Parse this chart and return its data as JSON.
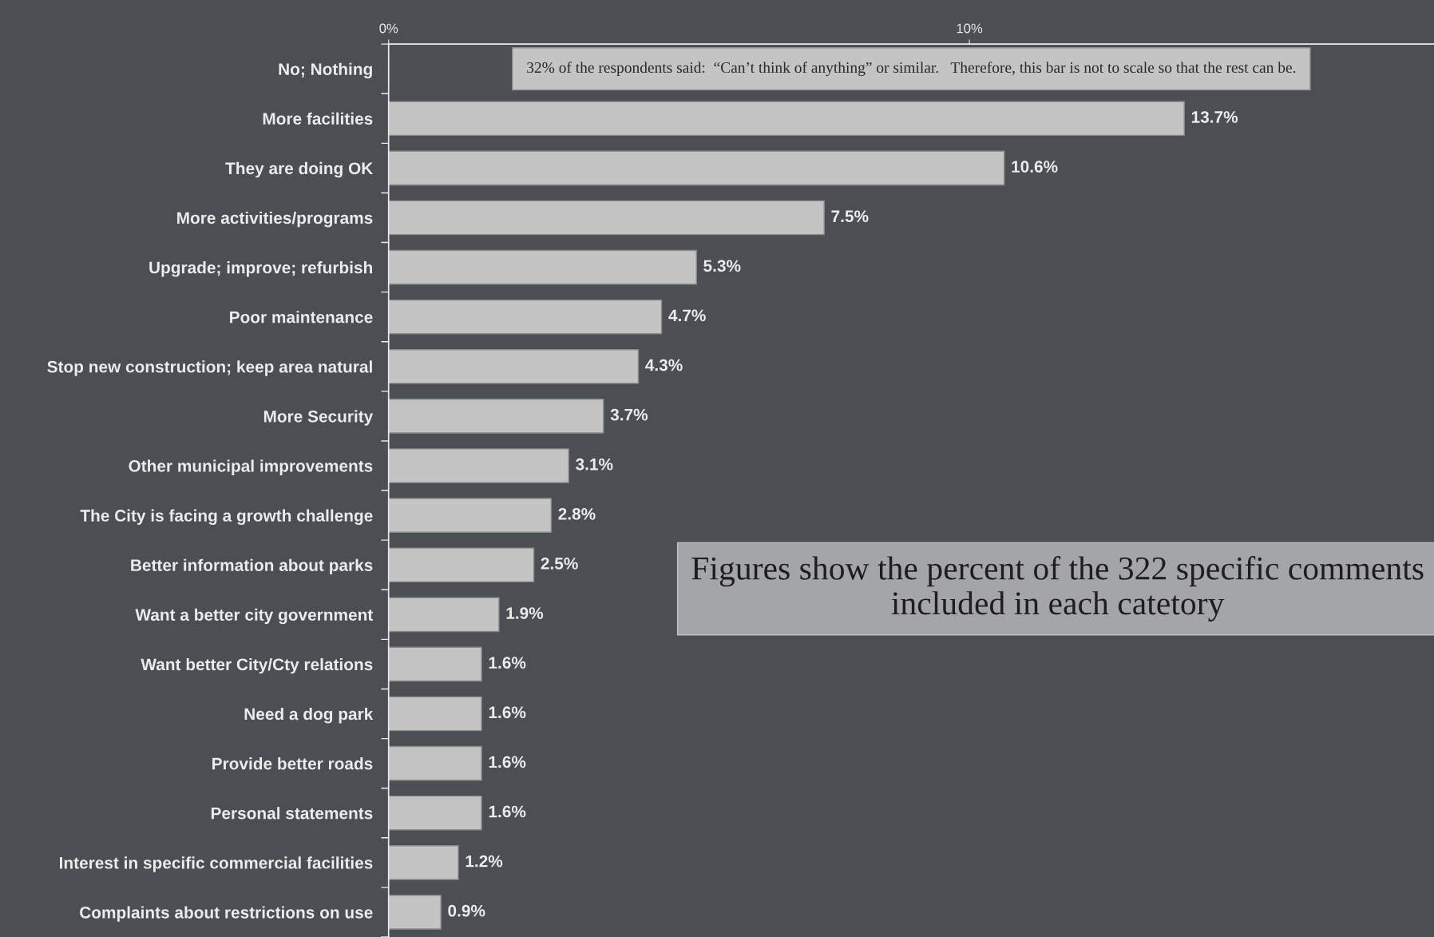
{
  "chart_data": {
    "type": "bar",
    "orientation": "horizontal",
    "categories": [
      "No; Nothing",
      "More facilities",
      "They are doing OK",
      "More activities/programs",
      "Upgrade; improve; refurbish",
      "Poor maintenance",
      "Stop new construction; keep area natural",
      "More Security",
      "Other municipal improvements",
      "The City is facing a growth challenge",
      "Better information about parks",
      "Want a better city government",
      "Want better City/Cty relations",
      "Need a dog park",
      "Provide better roads",
      "Personal statements",
      "Interest in specific commercial facilities",
      "Complaints about restrictions on use"
    ],
    "values": [
      null,
      13.7,
      10.6,
      7.5,
      5.3,
      4.7,
      4.3,
      3.7,
      3.1,
      2.8,
      2.5,
      1.9,
      1.6,
      1.6,
      1.6,
      1.6,
      1.2,
      0.9
    ],
    "value_labels": [
      null,
      "13.7%",
      "10.6%",
      "7.5%",
      "5.3%",
      "4.7%",
      "4.3%",
      "3.7%",
      "3.1%",
      "2.8%",
      "2.5%",
      "1.9%",
      "1.6%",
      "1.6%",
      "1.6%",
      "1.6%",
      "1.2%",
      "0.9%"
    ],
    "color": "#c4c4c4",
    "xlim": [
      0,
      18
    ],
    "xticks": [
      {
        "value": 0,
        "label": "0%"
      },
      {
        "value": 10,
        "label": "10%"
      }
    ],
    "annotations": [
      "32% of the respondents said:  “Can’t think of anything” or similar.   Therefore, this bar is not to scale so that the rest can be.",
      "Figures show the percent of the 322 specific comments included in each catetory"
    ],
    "grid": false,
    "legend": false
  }
}
